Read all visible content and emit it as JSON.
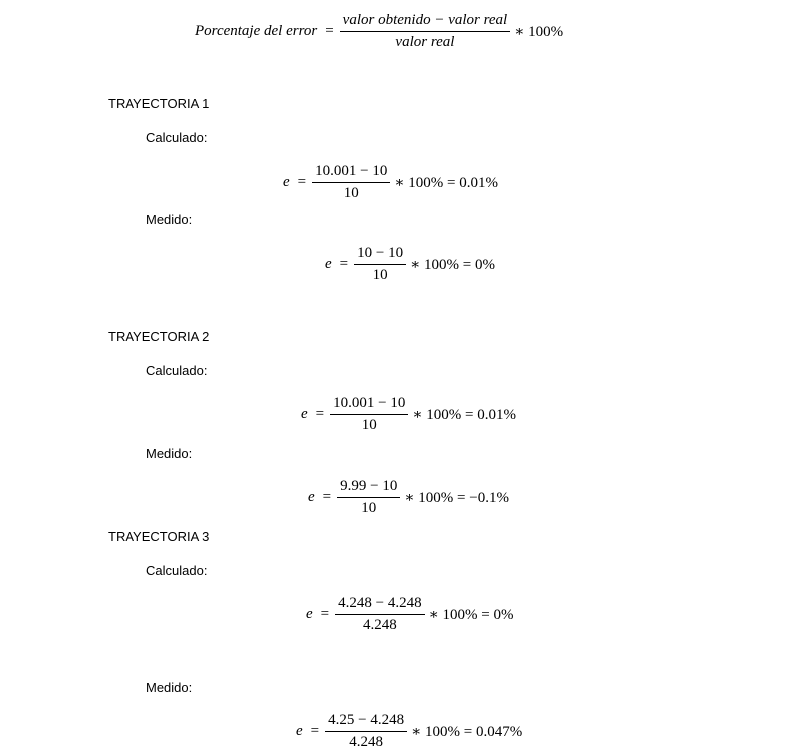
{
  "formula": {
    "lhs": "Porcentaje del error",
    "eq": "=",
    "numerator": "valor obtenido − valor real",
    "denominator": "valor real",
    "tail": "∗ 100%"
  },
  "sections": [
    {
      "title": "TRAYECTORIA 1",
      "calc_label": "Calculado:",
      "calc": {
        "lhs": "e",
        "eq": "=",
        "num": "10.001 − 10",
        "den": "10",
        "tail": "∗ 100% = 0.01%"
      },
      "meas_label": "Medido:",
      "meas": {
        "lhs": "e",
        "eq": "=",
        "num": "10 − 10",
        "den": "10",
        "tail": "∗ 100% = 0%"
      }
    },
    {
      "title": "TRAYECTORIA 2",
      "calc_label": "Calculado:",
      "calc": {
        "lhs": "e",
        "eq": "=",
        "num": "10.001 − 10",
        "den": "10",
        "tail": "∗ 100% = 0.01%"
      },
      "meas_label": "Medido:",
      "meas": {
        "lhs": "e",
        "eq": "=",
        "num": "9.99 − 10",
        "den": "10",
        "tail": "∗ 100% = −0.1%"
      }
    },
    {
      "title": "TRAYECTORIA 3",
      "calc_label": "Calculado:",
      "calc": {
        "lhs": "e",
        "eq": "=",
        "num": "4.248 − 4.248",
        "den": "4.248",
        "tail": "∗ 100% = 0%"
      },
      "meas_label": "Medido:",
      "meas": {
        "lhs": "e",
        "eq": "=",
        "num": "4.25 − 4.248",
        "den": "4.248",
        "tail": "∗ 100% = 0.047%"
      }
    }
  ]
}
